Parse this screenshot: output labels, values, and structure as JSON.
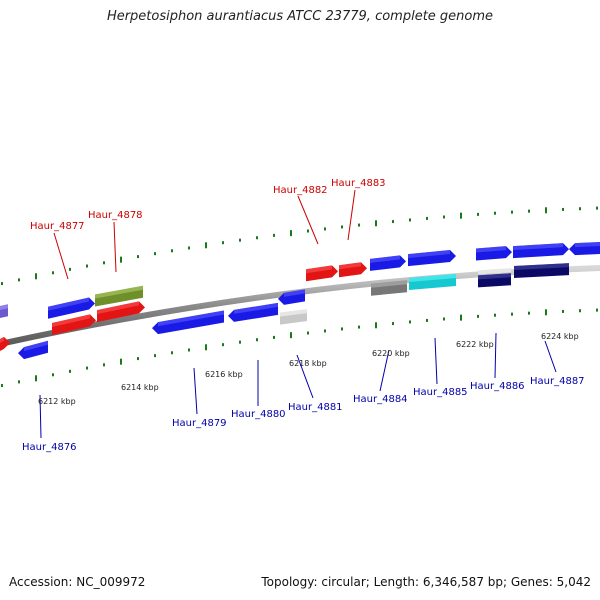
{
  "title": "Herpetosiphon aurantiacus ATCC 23779, complete genome",
  "footer": {
    "accession": "Accession: NC_009972",
    "summary": "Topology: circular; Length: 6,346,587 bp; Genes: 5,042"
  },
  "colors": {
    "forward_blue": "#1a1ae6",
    "reverse_red": "#e31414",
    "label_red": "#cc0000",
    "label_blue": "#0000aa",
    "olive": "#6f8f2a",
    "cyan": "#18c8d0",
    "navy": "#0a0a66",
    "gray": "#777777",
    "silver": "#c8c8c8",
    "purple": "#6a5acd",
    "tick_green": "#1a7a1a",
    "backbone": "#888888"
  },
  "scale_labels": [
    "6212 kbp",
    "6214 kbp",
    "6216 kbp",
    "6218 kbp",
    "6220 kbp",
    "6222 kbp",
    "6224 kbp"
  ],
  "gene_labels": [
    {
      "id": "Haur_4876",
      "strand": "reverse"
    },
    {
      "id": "Haur_4877",
      "strand": "forward-top"
    },
    {
      "id": "Haur_4878",
      "strand": "forward-top"
    },
    {
      "id": "Haur_4879",
      "strand": "bottom"
    },
    {
      "id": "Haur_4880",
      "strand": "bottom"
    },
    {
      "id": "Haur_4881",
      "strand": "bottom"
    },
    {
      "id": "Haur_4882",
      "strand": "forward-top"
    },
    {
      "id": "Haur_4883",
      "strand": "forward-top"
    },
    {
      "id": "Haur_4884",
      "strand": "bottom"
    },
    {
      "id": "Haur_4885",
      "strand": "bottom"
    },
    {
      "id": "Haur_4886",
      "strand": "bottom"
    },
    {
      "id": "Haur_4887",
      "strand": "bottom"
    }
  ]
}
